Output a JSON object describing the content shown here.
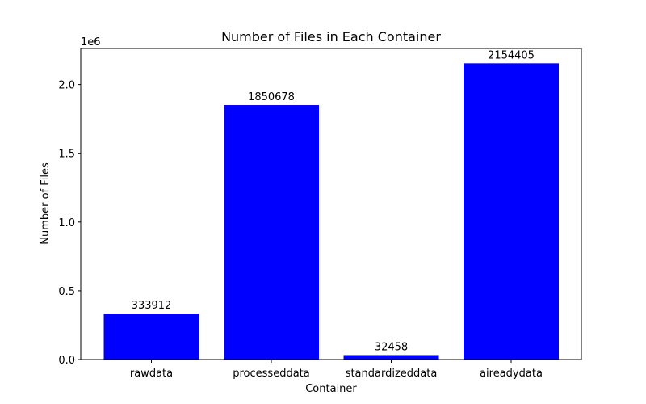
{
  "chart_data": {
    "type": "bar",
    "title": "Number of Files in Each Container",
    "xlabel": "Container",
    "ylabel": "Number of Files",
    "categories": [
      "rawdata",
      "processeddata",
      "standardizeddata",
      "aireadydata"
    ],
    "values": [
      333912,
      1850678,
      32458,
      2154405
    ],
    "data_labels": [
      "333912",
      "1850678",
      "32458",
      "2154405"
    ],
    "bar_color": "#0000ff",
    "ylim": [
      0,
      2262125
    ],
    "yticks": [
      0,
      500000,
      1000000,
      1500000,
      2000000
    ],
    "ytick_labels": [
      "0.0",
      "0.5",
      "1.0",
      "1.5",
      "2.0"
    ],
    "y_offset_label": "1e6",
    "grid": false,
    "legend": "none"
  }
}
